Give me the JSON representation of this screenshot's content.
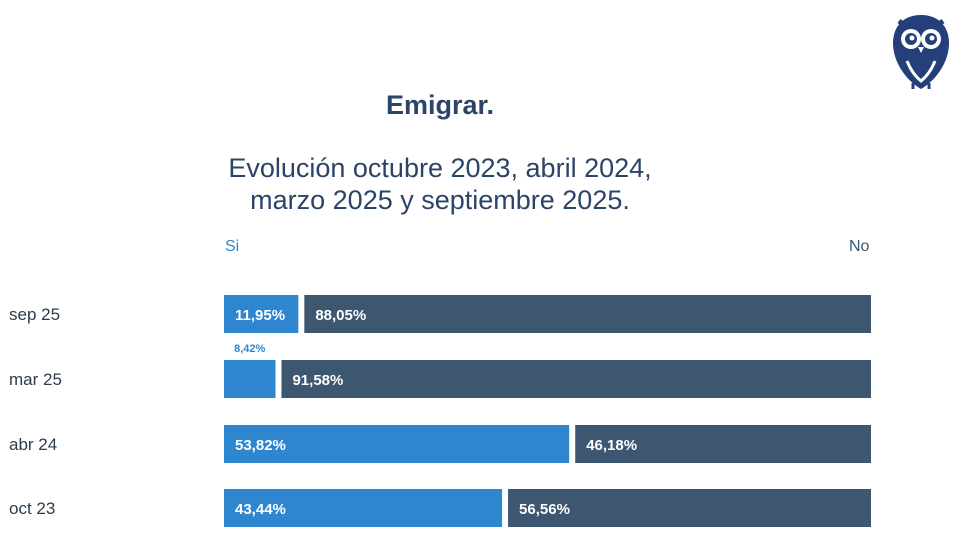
{
  "header": {
    "title": "Emigrar.",
    "subtitle_line1": "Evolución octubre 2023, abril 2024,",
    "subtitle_line2": "marzo 2025 y septiembre 2025."
  },
  "logo": {
    "icon": "owl-logo-icon"
  },
  "colors": {
    "si": "#2e86cf",
    "no": "#3d5770",
    "text": "#2b4468"
  },
  "chart_data": {
    "type": "bar",
    "orientation": "horizontal-stacked-100",
    "title": "Emigrar.",
    "subtitle": "Evolución octubre 2023, abril 2024, marzo 2025 y septiembre 2025.",
    "legend": [
      "Si",
      "No"
    ],
    "legend_placement": "top",
    "categories": [
      "sep 25",
      "mar 25",
      "abr 24",
      "oct 23"
    ],
    "series": [
      {
        "name": "Si",
        "values": [
          11.95,
          8.42,
          53.82,
          43.44
        ],
        "labels": [
          "11,95%",
          "8,42%",
          "53,82%",
          "43,44%"
        ]
      },
      {
        "name": "No",
        "values": [
          88.05,
          91.58,
          46.18,
          56.56
        ],
        "labels": [
          "88,05%",
          "91,58%",
          "46,18%",
          "56,56%"
        ]
      }
    ],
    "xlim": [
      0,
      100
    ],
    "grid": false
  }
}
